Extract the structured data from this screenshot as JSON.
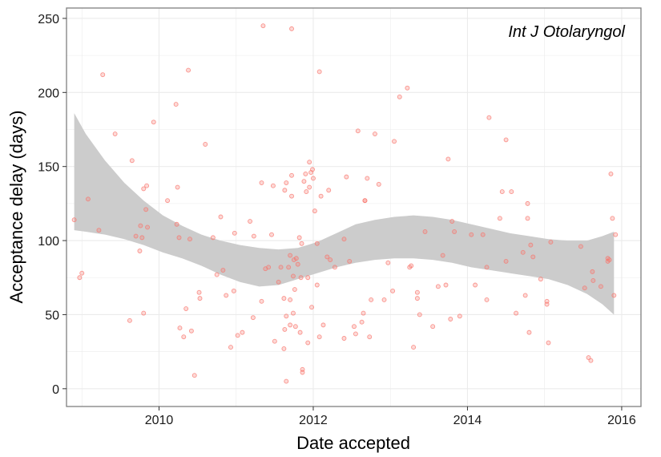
{
  "chart_data": {
    "type": "scatter",
    "annotation": "Int J Otolaryngol",
    "xlabel": "Date accepted",
    "ylabel": "Acceptance delay (days)",
    "xlim": [
      2008.8,
      2016.25
    ],
    "ylim": [
      -12,
      257
    ],
    "x_ticks": [
      {
        "value": 2010,
        "label": "2010"
      },
      {
        "value": 2012,
        "label": "2012"
      },
      {
        "value": 2014,
        "label": "2014"
      },
      {
        "value": 2016,
        "label": "2016"
      }
    ],
    "y_ticks": [
      {
        "value": 0,
        "label": "0"
      },
      {
        "value": 50,
        "label": "50"
      },
      {
        "value": 100,
        "label": "100"
      },
      {
        "value": 150,
        "label": "150"
      },
      {
        "value": 200,
        "label": "200"
      },
      {
        "value": 250,
        "label": "250"
      }
    ],
    "grid": true,
    "colors": {
      "points": "#F8766D",
      "ribbon": "#cccccc",
      "grid": "#ebebeb",
      "frame": "#7f7f7f"
    },
    "points": [
      [
        2008.9,
        114
      ],
      [
        2008.97,
        75
      ],
      [
        2009.0,
        78
      ],
      [
        2009.08,
        128
      ],
      [
        2009.22,
        107
      ],
      [
        2009.27,
        212
      ],
      [
        2009.43,
        172
      ],
      [
        2009.62,
        46
      ],
      [
        2009.65,
        154
      ],
      [
        2009.7,
        103
      ],
      [
        2009.75,
        93
      ],
      [
        2009.76,
        110
      ],
      [
        2009.78,
        102
      ],
      [
        2009.8,
        135
      ],
      [
        2009.8,
        51
      ],
      [
        2009.83,
        121
      ],
      [
        2009.84,
        137
      ],
      [
        2009.85,
        109
      ],
      [
        2009.93,
        180
      ],
      [
        2010.11,
        127
      ],
      [
        2010.22,
        192
      ],
      [
        2010.23,
        111
      ],
      [
        2010.24,
        136
      ],
      [
        2010.26,
        102
      ],
      [
        2010.27,
        41
      ],
      [
        2010.32,
        35
      ],
      [
        2010.35,
        54
      ],
      [
        2010.38,
        215
      ],
      [
        2010.4,
        101
      ],
      [
        2010.42,
        39
      ],
      [
        2010.46,
        9
      ],
      [
        2010.52,
        65
      ],
      [
        2010.53,
        61
      ],
      [
        2010.6,
        165
      ],
      [
        2010.7,
        102
      ],
      [
        2010.75,
        77
      ],
      [
        2010.8,
        116
      ],
      [
        2010.83,
        80
      ],
      [
        2010.87,
        63
      ],
      [
        2010.93,
        28
      ],
      [
        2010.97,
        66
      ],
      [
        2010.98,
        105
      ],
      [
        2011.02,
        36
      ],
      [
        2011.08,
        38
      ],
      [
        2011.18,
        113
      ],
      [
        2011.22,
        48
      ],
      [
        2011.23,
        103
      ],
      [
        2011.33,
        59
      ],
      [
        2011.33,
        139
      ],
      [
        2011.35,
        245
      ],
      [
        2011.38,
        81
      ],
      [
        2011.42,
        82
      ],
      [
        2011.46,
        104
      ],
      [
        2011.48,
        137
      ],
      [
        2011.5,
        32
      ],
      [
        2011.55,
        72
      ],
      [
        2011.58,
        82
      ],
      [
        2011.62,
        61
      ],
      [
        2011.62,
        27
      ],
      [
        2011.63,
        134
      ],
      [
        2011.63,
        40
      ],
      [
        2011.65,
        139
      ],
      [
        2011.65,
        5
      ],
      [
        2011.65,
        49
      ],
      [
        2011.68,
        82
      ],
      [
        2011.7,
        90
      ],
      [
        2011.7,
        60
      ],
      [
        2011.7,
        43
      ],
      [
        2011.72,
        243
      ],
      [
        2011.72,
        144
      ],
      [
        2011.72,
        130
      ],
      [
        2011.74,
        51
      ],
      [
        2011.74,
        76
      ],
      [
        2011.75,
        87
      ],
      [
        2011.76,
        67
      ],
      [
        2011.77,
        42
      ],
      [
        2011.78,
        88
      ],
      [
        2011.8,
        84
      ],
      [
        2011.82,
        102
      ],
      [
        2011.83,
        38
      ],
      [
        2011.84,
        75
      ],
      [
        2011.85,
        98
      ],
      [
        2011.86,
        11
      ],
      [
        2011.86,
        13
      ],
      [
        2011.88,
        140
      ],
      [
        2011.9,
        145
      ],
      [
        2011.91,
        133
      ],
      [
        2011.93,
        31
      ],
      [
        2011.93,
        75
      ],
      [
        2011.95,
        153
      ],
      [
        2011.95,
        136
      ],
      [
        2011.97,
        146
      ],
      [
        2011.98,
        55
      ],
      [
        2011.99,
        148
      ],
      [
        2012.0,
        142
      ],
      [
        2012.02,
        120
      ],
      [
        2012.05,
        98
      ],
      [
        2012.05,
        70
      ],
      [
        2012.08,
        214
      ],
      [
        2012.08,
        35
      ],
      [
        2012.1,
        130
      ],
      [
        2012.13,
        43
      ],
      [
        2012.18,
        89
      ],
      [
        2012.2,
        134
      ],
      [
        2012.22,
        87
      ],
      [
        2012.28,
        82
      ],
      [
        2012.4,
        34
      ],
      [
        2012.4,
        101
      ],
      [
        2012.43,
        143
      ],
      [
        2012.47,
        86
      ],
      [
        2012.53,
        42
      ],
      [
        2012.55,
        37
      ],
      [
        2012.58,
        174
      ],
      [
        2012.63,
        45
      ],
      [
        2012.65,
        51
      ],
      [
        2012.67,
        127
      ],
      [
        2012.67,
        127
      ],
      [
        2012.7,
        142
      ],
      [
        2012.73,
        35
      ],
      [
        2012.75,
        60
      ],
      [
        2012.8,
        172
      ],
      [
        2012.85,
        138
      ],
      [
        2012.92,
        60
      ],
      [
        2012.97,
        85
      ],
      [
        2013.03,
        66
      ],
      [
        2013.05,
        167
      ],
      [
        2013.12,
        197
      ],
      [
        2013.22,
        203
      ],
      [
        2013.25,
        82
      ],
      [
        2013.27,
        83
      ],
      [
        2013.3,
        28
      ],
      [
        2013.35,
        61
      ],
      [
        2013.35,
        65
      ],
      [
        2013.38,
        50
      ],
      [
        2013.45,
        106
      ],
      [
        2013.55,
        42
      ],
      [
        2013.62,
        69
      ],
      [
        2013.68,
        90
      ],
      [
        2013.72,
        70
      ],
      [
        2013.75,
        155
      ],
      [
        2013.78,
        47
      ],
      [
        2013.8,
        113
      ],
      [
        2013.83,
        106
      ],
      [
        2013.9,
        49
      ],
      [
        2014.05,
        104
      ],
      [
        2014.1,
        70
      ],
      [
        2014.2,
        104
      ],
      [
        2014.25,
        82
      ],
      [
        2014.25,
        60
      ],
      [
        2014.28,
        183
      ],
      [
        2014.42,
        115
      ],
      [
        2014.45,
        133
      ],
      [
        2014.5,
        86
      ],
      [
        2014.5,
        168
      ],
      [
        2014.57,
        133
      ],
      [
        2014.63,
        51
      ],
      [
        2014.72,
        92
      ],
      [
        2014.75,
        63
      ],
      [
        2014.78,
        115
      ],
      [
        2014.78,
        125
      ],
      [
        2014.8,
        38
      ],
      [
        2014.82,
        97
      ],
      [
        2014.85,
        89
      ],
      [
        2014.95,
        74
      ],
      [
        2015.03,
        59
      ],
      [
        2015.03,
        57
      ],
      [
        2015.05,
        31
      ],
      [
        2015.08,
        99
      ],
      [
        2015.47,
        96
      ],
      [
        2015.52,
        68
      ],
      [
        2015.57,
        21
      ],
      [
        2015.6,
        19
      ],
      [
        2015.62,
        79
      ],
      [
        2015.63,
        73
      ],
      [
        2015.73,
        69
      ],
      [
        2015.82,
        86
      ],
      [
        2015.82,
        88
      ],
      [
        2015.84,
        87
      ],
      [
        2015.86,
        145
      ],
      [
        2015.88,
        115
      ],
      [
        2015.9,
        63
      ],
      [
        2015.92,
        104
      ]
    ],
    "ribbon": [
      {
        "x": 2008.9,
        "lo": 107,
        "hi": 186
      },
      {
        "x": 2009.05,
        "lo": 106,
        "hi": 172
      },
      {
        "x": 2009.3,
        "lo": 104,
        "hi": 154
      },
      {
        "x": 2009.55,
        "lo": 101,
        "hi": 139
      },
      {
        "x": 2009.8,
        "lo": 97,
        "hi": 127
      },
      {
        "x": 2010.05,
        "lo": 92,
        "hi": 117
      },
      {
        "x": 2010.3,
        "lo": 88,
        "hi": 110
      },
      {
        "x": 2010.55,
        "lo": 83,
        "hi": 104
      },
      {
        "x": 2010.8,
        "lo": 77,
        "hi": 100
      },
      {
        "x": 2011.05,
        "lo": 72,
        "hi": 97
      },
      {
        "x": 2011.3,
        "lo": 69,
        "hi": 95
      },
      {
        "x": 2011.55,
        "lo": 70,
        "hi": 94
      },
      {
        "x": 2011.8,
        "lo": 74,
        "hi": 95
      },
      {
        "x": 2012.05,
        "lo": 78,
        "hi": 99
      },
      {
        "x": 2012.3,
        "lo": 82,
        "hi": 105
      },
      {
        "x": 2012.55,
        "lo": 85,
        "hi": 111
      },
      {
        "x": 2012.8,
        "lo": 87,
        "hi": 114
      },
      {
        "x": 2013.05,
        "lo": 88,
        "hi": 116
      },
      {
        "x": 2013.3,
        "lo": 88,
        "hi": 117
      },
      {
        "x": 2013.55,
        "lo": 87,
        "hi": 116
      },
      {
        "x": 2013.8,
        "lo": 85,
        "hi": 114
      },
      {
        "x": 2014.05,
        "lo": 82,
        "hi": 111
      },
      {
        "x": 2014.3,
        "lo": 80,
        "hi": 108
      },
      {
        "x": 2014.55,
        "lo": 78,
        "hi": 105
      },
      {
        "x": 2014.8,
        "lo": 76,
        "hi": 103
      },
      {
        "x": 2015.05,
        "lo": 74,
        "hi": 101
      },
      {
        "x": 2015.3,
        "lo": 70,
        "hi": 100
      },
      {
        "x": 2015.55,
        "lo": 64,
        "hi": 100
      },
      {
        "x": 2015.75,
        "lo": 57,
        "hi": 103
      },
      {
        "x": 2015.9,
        "lo": 50,
        "hi": 106
      }
    ]
  }
}
